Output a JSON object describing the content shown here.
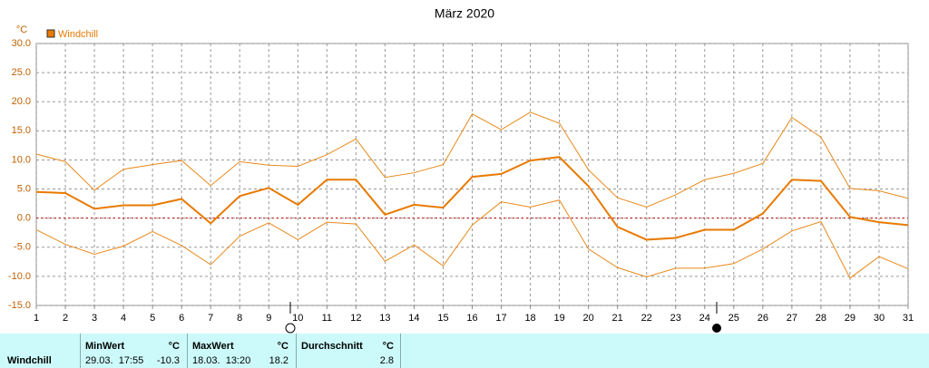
{
  "chart_data": {
    "type": "line",
    "title": "März 2020",
    "y_unit": "°C",
    "x": [
      1,
      2,
      3,
      4,
      5,
      6,
      7,
      8,
      9,
      10,
      11,
      12,
      13,
      14,
      15,
      16,
      17,
      18,
      19,
      20,
      21,
      22,
      23,
      24,
      25,
      26,
      27,
      28,
      29,
      30,
      31
    ],
    "xlim": [
      1,
      31
    ],
    "xticks": [
      1,
      2,
      3,
      4,
      5,
      6,
      7,
      8,
      9,
      10,
      11,
      12,
      13,
      14,
      15,
      16,
      17,
      18,
      19,
      20,
      21,
      22,
      23,
      24,
      25,
      26,
      27,
      28,
      29,
      30,
      31
    ],
    "ylim": [
      -15,
      30
    ],
    "yticks": [
      {
        "value": -15,
        "label": "-15.0"
      },
      {
        "value": -10,
        "label": "-10.0"
      },
      {
        "value": -5,
        "label": "-5.0"
      },
      {
        "value": 0,
        "label": "0.0"
      },
      {
        "value": 5,
        "label": "5.0"
      },
      {
        "value": 10,
        "label": "10.0"
      },
      {
        "value": 15,
        "label": "15.0"
      },
      {
        "value": 20,
        "label": "20.0"
      },
      {
        "value": 25,
        "label": "25.0"
      },
      {
        "value": 30,
        "label": "30.0"
      }
    ],
    "grid": true,
    "zero_line": true,
    "legend": "top-left",
    "series": [
      {
        "name": "Windchill",
        "color": "#e87a00",
        "width": 2,
        "values": [
          4.5,
          4.3,
          1.6,
          2.2,
          2.2,
          3.3,
          -0.9,
          3.8,
          5.2,
          2.3,
          6.6,
          6.6,
          0.6,
          2.3,
          1.8,
          7.1,
          7.6,
          9.9,
          10.5,
          5.5,
          -1.5,
          -3.7,
          -3.4,
          -2.0,
          -2.0,
          0.8,
          6.6,
          6.4,
          0.2,
          -0.7,
          -1.2
        ]
      },
      {
        "color": "#e8891a",
        "width": 1,
        "values": [
          11.0,
          9.7,
          4.8,
          8.4,
          9.2,
          9.9,
          5.6,
          9.7,
          9.1,
          8.9,
          10.9,
          13.6,
          7.0,
          7.8,
          9.2,
          17.9,
          15.2,
          18.2,
          16.3,
          8.3,
          3.5,
          1.9,
          4.0,
          6.6,
          7.7,
          9.4,
          17.3,
          13.9,
          5.1,
          4.7,
          3.4
        ]
      },
      {
        "color": "#e8891a",
        "width": 1,
        "values": [
          -2.0,
          -4.5,
          -6.2,
          -4.8,
          -2.3,
          -4.7,
          -8.0,
          -3.1,
          -0.8,
          -3.7,
          -0.7,
          -1.0,
          -7.4,
          -4.6,
          -8.2,
          -1.2,
          2.8,
          1.9,
          3.1,
          -5.3,
          -8.5,
          -10.1,
          -8.6,
          -8.6,
          -7.8,
          -5.3,
          -2.2,
          -0.6,
          -10.3,
          -6.6,
          -8.7
        ]
      }
    ]
  },
  "table": {
    "row_label": "Windchill",
    "columns": [
      {
        "header": "MinWert",
        "unit": "°C",
        "time": "29.03.  17:55",
        "value": -10.3
      },
      {
        "header": "MaxWert",
        "unit": "°C",
        "time": "18.03.  13:20",
        "value": 18.2
      },
      {
        "header": "Durchschnitt",
        "unit": "°C",
        "value": 2.8
      }
    ]
  }
}
